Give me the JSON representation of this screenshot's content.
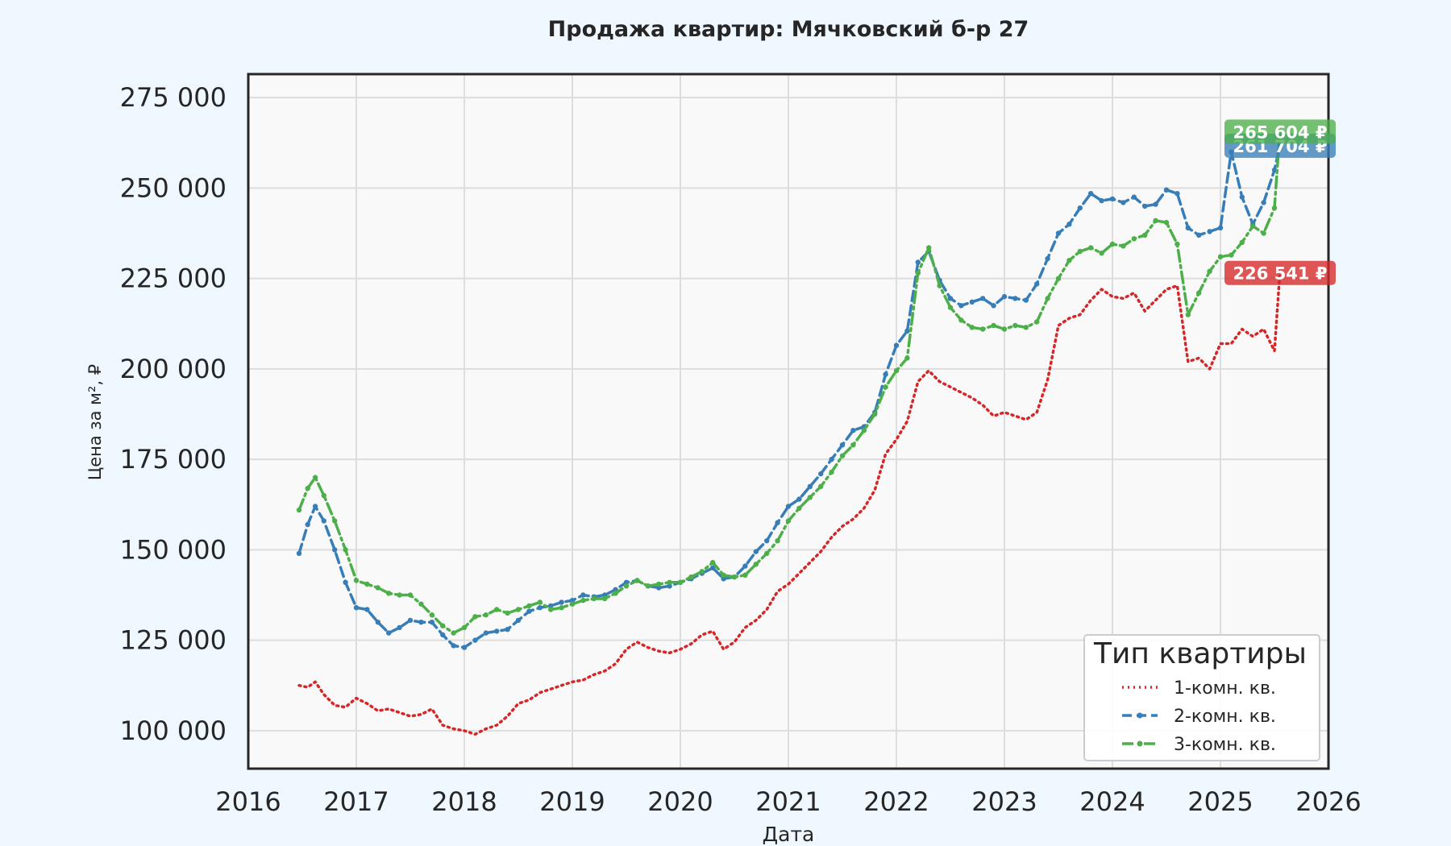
{
  "chart_data": {
    "type": "line",
    "title": "Продажа квартир: Мячковский б-р 27",
    "xlabel": "Дата",
    "ylabel": "Цена за м², ₽",
    "xlim": [
      2016.0,
      2026.0
    ],
    "ylim": [
      89500,
      281500
    ],
    "x_ticks": [
      "2016",
      "2017",
      "2018",
      "2019",
      "2020",
      "2021",
      "2022",
      "2023",
      "2024",
      "2025",
      "2026"
    ],
    "y_ticks": [
      100000,
      125000,
      150000,
      175000,
      200000,
      225000,
      250000,
      275000
    ],
    "y_tick_labels": [
      "100 000",
      "125 000",
      "150 000",
      "175 000",
      "200 000",
      "225 000",
      "250 000",
      "275 000"
    ],
    "grid": true,
    "legend": {
      "title": "Тип квартиры",
      "placement": "lower-right"
    },
    "series": [
      {
        "name": "1-комн. кв.",
        "color": "#d62728",
        "style": "dotted",
        "last_value_label": "226 541 ₽",
        "x": [
          2016.47,
          2016.55,
          2016.62,
          2016.7,
          2016.8,
          2016.9,
          2017.0,
          2017.1,
          2017.2,
          2017.3,
          2017.4,
          2017.5,
          2017.6,
          2017.7,
          2017.8,
          2017.9,
          2018.0,
          2018.1,
          2018.2,
          2018.3,
          2018.4,
          2018.5,
          2018.6,
          2018.7,
          2018.8,
          2018.9,
          2019.0,
          2019.1,
          2019.2,
          2019.3,
          2019.4,
          2019.5,
          2019.6,
          2019.7,
          2019.8,
          2019.9,
          2020.0,
          2020.1,
          2020.2,
          2020.3,
          2020.4,
          2020.5,
          2020.6,
          2020.7,
          2020.8,
          2020.9,
          2021.0,
          2021.1,
          2021.2,
          2021.3,
          2021.4,
          2021.5,
          2021.6,
          2021.7,
          2021.8,
          2021.9,
          2022.0,
          2022.1,
          2022.2,
          2022.3,
          2022.4,
          2022.5,
          2022.6,
          2022.7,
          2022.8,
          2022.9,
          2023.0,
          2023.1,
          2023.2,
          2023.3,
          2023.4,
          2023.5,
          2023.6,
          2023.7,
          2023.8,
          2023.9,
          2024.0,
          2024.1,
          2024.2,
          2024.3,
          2024.4,
          2024.5,
          2024.6,
          2024.7,
          2024.8,
          2024.9,
          2025.0,
          2025.1,
          2025.2,
          2025.3,
          2025.4,
          2025.5,
          2025.55
        ],
        "y": [
          112500,
          112000,
          113500,
          110000,
          107000,
          106500,
          109000,
          107500,
          105500,
          106000,
          105000,
          104000,
          104500,
          106000,
          101500,
          100500,
          100000,
          99000,
          100500,
          101500,
          104000,
          107500,
          108500,
          110500,
          111500,
          112500,
          113500,
          114000,
          115500,
          116500,
          118500,
          122500,
          124500,
          123000,
          122000,
          121500,
          122500,
          124000,
          126500,
          127500,
          122500,
          124500,
          128500,
          130500,
          133500,
          138500,
          140500,
          143500,
          146500,
          149500,
          153500,
          156500,
          158500,
          161500,
          166500,
          176500,
          180500,
          185500,
          196500,
          199500,
          196500,
          195000,
          193500,
          192000,
          190000,
          187000,
          188000,
          187000,
          186000,
          188000,
          197000,
          212000,
          214000,
          215000,
          219000,
          222000,
          220000,
          219500,
          221000,
          216000,
          219000,
          222000,
          223000,
          202000,
          203000,
          200000,
          207000,
          207000,
          211000,
          209000,
          211000,
          205000,
          226541
        ]
      },
      {
        "name": "2-комн. кв.",
        "color": "#377eb8",
        "style": "dashed",
        "last_value_label": "261 704 ₽",
        "x": [
          2016.47,
          2016.55,
          2016.62,
          2016.7,
          2016.8,
          2016.9,
          2017.0,
          2017.1,
          2017.2,
          2017.3,
          2017.4,
          2017.5,
          2017.6,
          2017.7,
          2017.8,
          2017.9,
          2018.0,
          2018.1,
          2018.2,
          2018.3,
          2018.4,
          2018.5,
          2018.6,
          2018.7,
          2018.8,
          2018.9,
          2019.0,
          2019.1,
          2019.2,
          2019.3,
          2019.4,
          2019.5,
          2019.6,
          2019.7,
          2019.8,
          2019.9,
          2020.0,
          2020.1,
          2020.2,
          2020.3,
          2020.4,
          2020.5,
          2020.6,
          2020.7,
          2020.8,
          2020.9,
          2021.0,
          2021.1,
          2021.2,
          2021.3,
          2021.4,
          2021.5,
          2021.6,
          2021.7,
          2021.8,
          2021.9,
          2022.0,
          2022.1,
          2022.2,
          2022.3,
          2022.4,
          2022.5,
          2022.6,
          2022.7,
          2022.8,
          2022.9,
          2023.0,
          2023.1,
          2023.2,
          2023.3,
          2023.4,
          2023.5,
          2023.6,
          2023.7,
          2023.8,
          2023.9,
          2024.0,
          2024.1,
          2024.2,
          2024.3,
          2024.4,
          2024.5,
          2024.6,
          2024.7,
          2024.8,
          2024.9,
          2025.0,
          2025.1,
          2025.2,
          2025.3,
          2025.4,
          2025.5,
          2025.55
        ],
        "y": [
          149000,
          157000,
          162000,
          158000,
          150000,
          141000,
          134000,
          133500,
          130000,
          127000,
          128500,
          130500,
          130000,
          130000,
          126500,
          123500,
          123000,
          125000,
          127000,
          127500,
          128000,
          130500,
          133000,
          134000,
          134500,
          135500,
          136000,
          137500,
          137000,
          137500,
          139000,
          141000,
          141500,
          140000,
          139500,
          140000,
          141000,
          142000,
          143500,
          145000,
          142000,
          142500,
          145500,
          149500,
          152500,
          157500,
          162000,
          164000,
          167500,
          171000,
          175000,
          179000,
          183000,
          184000,
          188000,
          198500,
          206500,
          210500,
          229500,
          232500,
          224500,
          219500,
          217500,
          218500,
          219500,
          217500,
          220000,
          219500,
          219000,
          223500,
          230500,
          237500,
          240000,
          244500,
          248500,
          246500,
          247000,
          246000,
          247500,
          245000,
          245500,
          249500,
          248500,
          239000,
          237000,
          238000,
          239000,
          260000,
          247500,
          240000,
          246000,
          255000,
          261704
        ]
      },
      {
        "name": "3-комн. кв.",
        "color": "#4daf4a",
        "style": "dashdot",
        "last_value_label": "265 604 ₽",
        "x": [
          2016.47,
          2016.55,
          2016.62,
          2016.7,
          2016.8,
          2016.9,
          2017.0,
          2017.1,
          2017.2,
          2017.3,
          2017.4,
          2017.5,
          2017.6,
          2017.7,
          2017.8,
          2017.9,
          2018.0,
          2018.1,
          2018.2,
          2018.3,
          2018.4,
          2018.5,
          2018.6,
          2018.7,
          2018.8,
          2018.9,
          2019.0,
          2019.1,
          2019.2,
          2019.3,
          2019.4,
          2019.5,
          2019.6,
          2019.7,
          2019.8,
          2019.9,
          2020.0,
          2020.1,
          2020.2,
          2020.3,
          2020.4,
          2020.5,
          2020.6,
          2020.7,
          2020.8,
          2020.9,
          2021.0,
          2021.1,
          2021.2,
          2021.3,
          2021.4,
          2021.5,
          2021.6,
          2021.7,
          2021.8,
          2021.9,
          2022.0,
          2022.1,
          2022.2,
          2022.3,
          2022.4,
          2022.5,
          2022.6,
          2022.7,
          2022.8,
          2022.9,
          2023.0,
          2023.1,
          2023.2,
          2023.3,
          2023.4,
          2023.5,
          2023.6,
          2023.7,
          2023.8,
          2023.9,
          2024.0,
          2024.1,
          2024.2,
          2024.3,
          2024.4,
          2024.5,
          2024.6,
          2024.7,
          2024.8,
          2024.9,
          2025.0,
          2025.1,
          2025.2,
          2025.3,
          2025.4,
          2025.5,
          2025.55
        ],
        "y": [
          161000,
          167000,
          170000,
          165000,
          158000,
          150000,
          141500,
          140500,
          139500,
          138000,
          137500,
          137500,
          135000,
          132000,
          129000,
          127000,
          128500,
          131500,
          132000,
          133500,
          132500,
          133500,
          134500,
          135500,
          133500,
          134000,
          135000,
          136000,
          136500,
          136500,
          138000,
          140000,
          141500,
          140000,
          140500,
          141000,
          141000,
          142500,
          144000,
          146500,
          143000,
          142500,
          143000,
          146000,
          149000,
          152500,
          158000,
          161500,
          164500,
          167500,
          171500,
          176000,
          179000,
          183000,
          187500,
          195000,
          199500,
          203000,
          226500,
          233500,
          223000,
          217000,
          213500,
          211500,
          211000,
          212000,
          211000,
          212000,
          211500,
          213000,
          219500,
          225000,
          230000,
          232500,
          233500,
          232000,
          234500,
          234000,
          236000,
          237000,
          241000,
          240500,
          234500,
          215000,
          221000,
          227000,
          231000,
          231500,
          235000,
          239500,
          237500,
          244500,
          265604
        ]
      }
    ]
  }
}
